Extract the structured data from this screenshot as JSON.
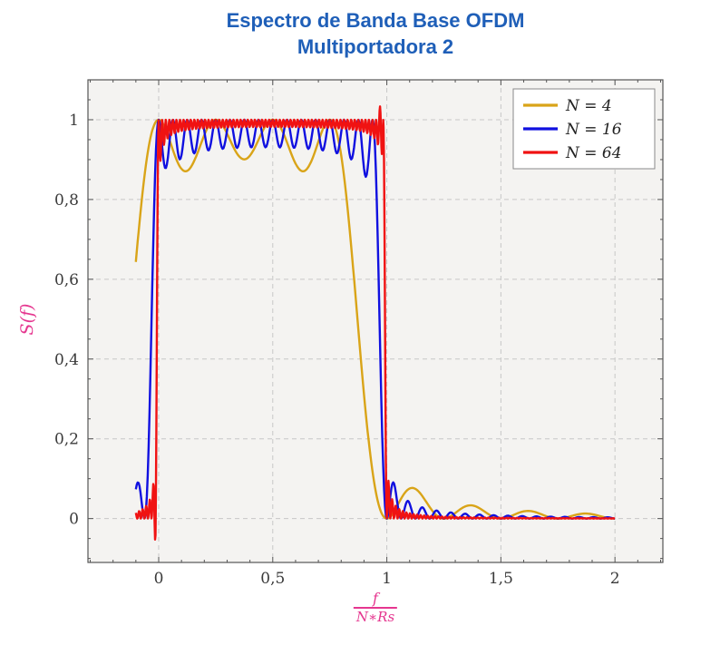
{
  "style": {
    "title_color": "#1f5fb8",
    "label_color": "#e5368f",
    "tick_color": "#3a3a3a",
    "panel_bg": "#f4f3f1",
    "grid_color": "#c7c7c7",
    "frame_color": "#555555",
    "legend_border": "#8a8a8a",
    "legend_bg": "#ffffff"
  },
  "chart_data": {
    "type": "line",
    "title_lines": [
      "Espectro de Banda Base OFDM",
      "Multiportadora 2"
    ],
    "ylabel": "S(f)",
    "xlabel": {
      "numerator": "f",
      "denominator": "N∗Rs"
    },
    "xlim": [
      -0.31,
      2.21
    ],
    "ylim": [
      -0.11,
      1.1
    ],
    "x_ticks": [
      {
        "v": 0,
        "label": "0"
      },
      {
        "v": 0.5,
        "label": "0,5"
      },
      {
        "v": 1,
        "label": "1"
      },
      {
        "v": 1.5,
        "label": "1,5"
      },
      {
        "v": 2,
        "label": "2"
      }
    ],
    "y_ticks": [
      {
        "v": 0,
        "label": "0"
      },
      {
        "v": 0.2,
        "label": "0,2"
      },
      {
        "v": 0.4,
        "label": "0,4"
      },
      {
        "v": 0.6,
        "label": "0,6"
      },
      {
        "v": 0.8,
        "label": "0,8"
      },
      {
        "v": 1,
        "label": "1"
      }
    ],
    "minor_x_step": 0.1,
    "minor_y_step": 0.05,
    "grid": "major, dashed",
    "legend": {
      "position": "top-right"
    },
    "series": [
      {
        "label": "N = 4",
        "N": 4,
        "color": "#d9a418",
        "x_start": -0.1,
        "x_end": 2,
        "model": "S(x) = sum_{k=0}^{N-1} sinc^2(N*x - k),  x = f/(N*Rs)",
        "plateau_ripple": 0,
        "artifacts": [],
        "key_points": [
          [
            -0.1,
            0.64
          ],
          [
            0,
            1.0
          ],
          [
            0.125,
            0.87
          ],
          [
            0.25,
            1.0
          ],
          [
            0.375,
            0.9
          ],
          [
            0.5,
            1.0
          ],
          [
            0.625,
            0.9
          ],
          [
            0.75,
            1.0
          ],
          [
            0.875,
            0.91
          ],
          [
            1.0,
            0.0
          ],
          [
            1.125,
            0.07
          ],
          [
            1.375,
            0.05
          ],
          [
            1.625,
            0.035
          ],
          [
            1.875,
            0.02
          ],
          [
            2,
            0
          ]
        ]
      },
      {
        "label": "N = 16",
        "N": 16,
        "color": "#1010e0",
        "x_start": -0.1,
        "x_end": 2,
        "model": "S(x) = sum_{k=0}^{N-1} sinc^2(N*x - k),  x = f/(N*Rs)",
        "plateau_ripple": 0.045,
        "artifacts": [],
        "key_points": [
          [
            -0.1,
            0.07
          ],
          [
            -0.06,
            0.0
          ],
          [
            0.03,
            0.93
          ],
          [
            0.25,
            0.96
          ],
          [
            0.5,
            0.97
          ],
          [
            0.75,
            0.96
          ],
          [
            0.97,
            0.93
          ],
          [
            1.03,
            0.05
          ],
          [
            1.1,
            0.04
          ],
          [
            1.3,
            0.01
          ],
          [
            2,
            0
          ]
        ]
      },
      {
        "label": "N = 64",
        "N": 64,
        "color": "#f01212",
        "x_start": -0.1,
        "x_end": 2,
        "model": "S(x) = sum_{k=0}^{N-1} sinc^2(N*x - k),  x = f/(N*Rs)",
        "plateau_ripple": 0.012,
        "artifacts": [
          {
            "x": 0.973,
            "amp": 0.055,
            "sigma": 0.005
          },
          {
            "x": -0.014,
            "amp": -0.06,
            "sigma": 0.006
          }
        ],
        "key_points": [
          [
            -0.1,
            0.01
          ],
          [
            -0.014,
            -0.04
          ],
          [
            0,
            0.5
          ],
          [
            0.05,
            0.99
          ],
          [
            0.5,
            0.99
          ],
          [
            0.97,
            1.02
          ],
          [
            1.0,
            0.5
          ],
          [
            1.05,
            0.03
          ],
          [
            1.2,
            0.01
          ],
          [
            2,
            0
          ]
        ]
      }
    ]
  }
}
